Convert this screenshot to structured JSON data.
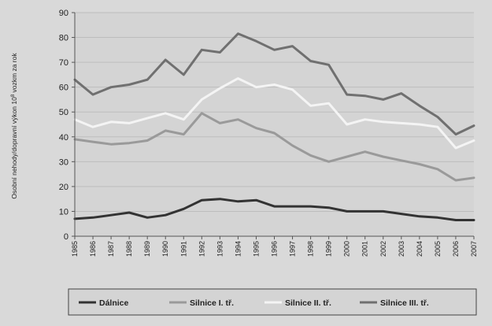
{
  "chart_data": {
    "type": "line",
    "title": "",
    "xlabel": "",
    "ylabel": "Osobní nehody/dopravní výkon 10",
    "ylabel_sup": "8",
    "ylabel_suffix": " vozkm za rok",
    "ylim": [
      0,
      90
    ],
    "yticks": [
      0,
      10,
      20,
      30,
      40,
      50,
      60,
      70,
      80,
      90
    ],
    "grid": true,
    "legend_position": "bottom",
    "x": [
      "1985",
      "1986",
      "1987",
      "1988",
      "1989",
      "1990",
      "1991",
      "1992",
      "1993",
      "1994",
      "1995",
      "1996",
      "1997",
      "1998",
      "1999",
      "2000",
      "2001",
      "2002",
      "2003",
      "2004",
      "2005",
      "2006",
      "2007"
    ],
    "series": [
      {
        "name": "Dálnice",
        "color": "#333333",
        "values": [
          7,
          7.5,
          8.5,
          9.5,
          7.5,
          8.5,
          11,
          14.5,
          15,
          14,
          14.5,
          12,
          12,
          12,
          11.5,
          10,
          10,
          10,
          9,
          8,
          7.5,
          6.5,
          6.5
        ]
      },
      {
        "name": "Silnice I. tř.",
        "color": "#9a9a9a",
        "values": [
          39,
          38,
          37,
          37.5,
          38.5,
          42.5,
          41,
          49.5,
          45.5,
          47,
          43.5,
          41.5,
          36.5,
          32.5,
          30,
          32,
          34,
          32,
          30.5,
          29,
          27,
          22.5,
          23.5
        ]
      },
      {
        "name": "Silnice II. tř.",
        "color": "#f4f4f4",
        "values": [
          47,
          44,
          46,
          45.5,
          47.5,
          49.5,
          47,
          55,
          59.5,
          63.5,
          60,
          61,
          59,
          52.5,
          53.5,
          45,
          47,
          46,
          45.5,
          45,
          44,
          35.5,
          38.5
        ]
      },
      {
        "name": "Silnice III. tř.",
        "color": "#707070",
        "values": [
          63,
          57,
          60,
          61,
          63,
          71,
          65,
          75,
          74,
          81.5,
          78.5,
          75,
          76.5,
          70.5,
          69,
          57,
          56.5,
          55,
          57.5,
          52.5,
          48,
          41,
          44.5
        ]
      }
    ]
  }
}
